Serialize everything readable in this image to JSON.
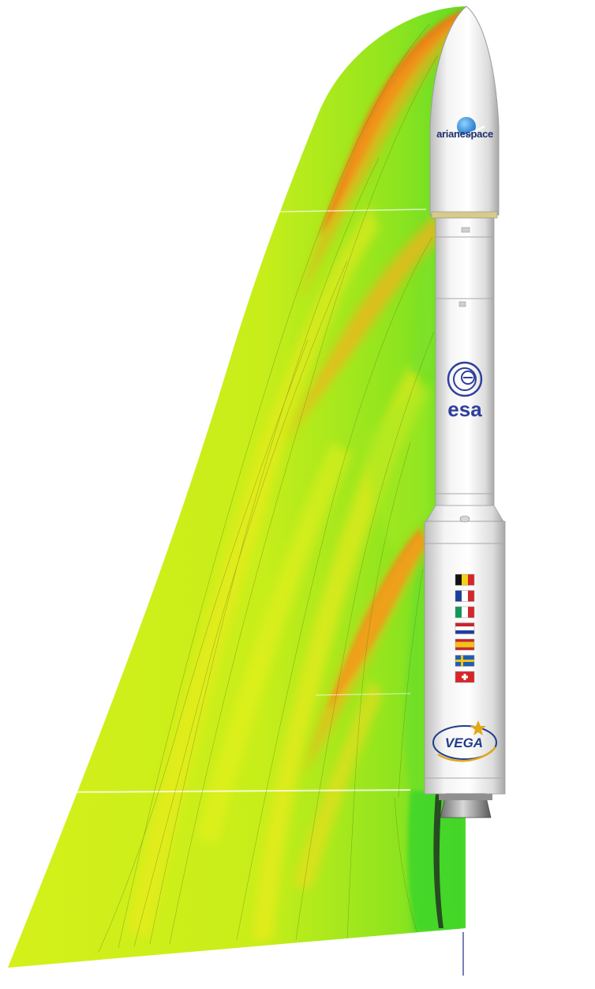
{
  "rocket": {
    "logos": {
      "arianespace": "arianespace",
      "esa": "esa",
      "vega": "VEGA"
    },
    "flags": [
      {
        "country": "belgium",
        "colors": [
          "#111111",
          "#f2d21b",
          "#d7262b"
        ],
        "orientation": "vertical"
      },
      {
        "country": "france",
        "colors": [
          "#1b3f9b",
          "#ffffff",
          "#d7262b"
        ],
        "orientation": "vertical"
      },
      {
        "country": "italy",
        "colors": [
          "#12965a",
          "#ffffff",
          "#d7262b"
        ],
        "orientation": "vertical"
      },
      {
        "country": "netherlands",
        "colors": [
          "#c8262b",
          "#ffffff",
          "#1b3f9b"
        ],
        "orientation": "horizontal"
      },
      {
        "country": "spain",
        "colors": [
          "#c8262b",
          "#f2c21b",
          "#c8262b"
        ],
        "orientation": "horizontal"
      },
      {
        "country": "sweden",
        "colors": [
          "#1f5fb3",
          "#f2c21b"
        ],
        "orientation": "cross"
      },
      {
        "country": "switzerland",
        "colors": [
          "#d7262b",
          "#ffffff"
        ],
        "orientation": "swiss"
      }
    ]
  },
  "flow_field": {
    "colors": {
      "freestream": "#d8f21a",
      "compression": "#f2e81a",
      "shock_high": "#f06a12",
      "shock_mid": "#f3a51a",
      "expansion": "#3fd83a",
      "wake": "#2fcf2a"
    }
  }
}
